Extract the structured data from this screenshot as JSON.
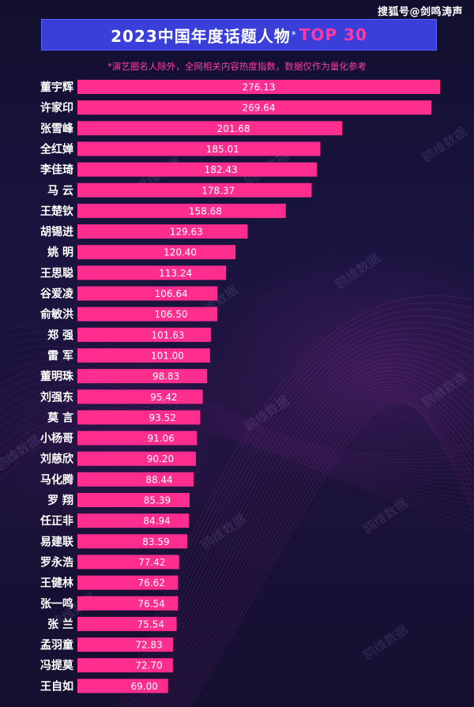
{
  "header": {
    "source_watermark": "搜狐号@剑鸣涛声",
    "title": "2023中国年度话题人物",
    "title_star": "*",
    "title_top": "TOP 30",
    "subtitle": "*演艺圈名人除外，全网相关内容热度指数，数据仅作为量化参考"
  },
  "watermark_text": "鸥维数据",
  "colors": {
    "bar": "#ff2e8e",
    "title_bg": "#3a3fd9",
    "accent": "#ff3aa3",
    "background": "#17123a"
  },
  "chart_data": {
    "type": "bar",
    "orientation": "horizontal",
    "title": "2023中国年度话题人物*TOP 30",
    "subtitle": "*演艺圈名人除外，全网相关内容热度指数，数据仅作为量化参考",
    "xlabel": "",
    "ylabel": "",
    "grid": false,
    "legend": "none",
    "xlim": [
      0,
      276.13
    ],
    "categories": [
      "董宇辉",
      "许家印",
      "张雪峰",
      "全红婵",
      "李佳琦",
      "马 云",
      "王楚钦",
      "胡锡进",
      "姚 明",
      "王思聪",
      "谷爱凌",
      "俞敏洪",
      "郑 强",
      "雷 军",
      "董明珠",
      "刘强东",
      "莫 言",
      "小杨哥",
      "刘慈欣",
      "马化腾",
      "罗 翔",
      "任正非",
      "易建联",
      "罗永浩",
      "王健林",
      "张一鸣",
      "张 兰",
      "孟羽童",
      "冯提莫",
      "王自如"
    ],
    "values": [
      276.13,
      269.64,
      201.68,
      185.01,
      182.43,
      178.37,
      158.68,
      129.63,
      120.4,
      113.24,
      106.64,
      106.5,
      101.63,
      101.0,
      98.83,
      95.42,
      93.52,
      91.06,
      90.2,
      88.44,
      85.39,
      84.94,
      83.59,
      77.42,
      76.62,
      76.54,
      75.54,
      72.83,
      72.7,
      69.0
    ],
    "value_labels": [
      "276.13",
      "269.64",
      "201.68",
      "185.01",
      "182.43",
      "178.37",
      "158.68",
      "129.63",
      "120.40",
      "113.24",
      "106.64",
      "106.50",
      "101.63",
      "101.00",
      "98.83",
      "95.42",
      "93.52",
      "91.06",
      "90.20",
      "88.44",
      "85.39",
      "84.94",
      "83.59",
      "77.42",
      "76.62",
      "76.54",
      "75.54",
      "72.83",
      "72.70",
      "69.00"
    ]
  }
}
